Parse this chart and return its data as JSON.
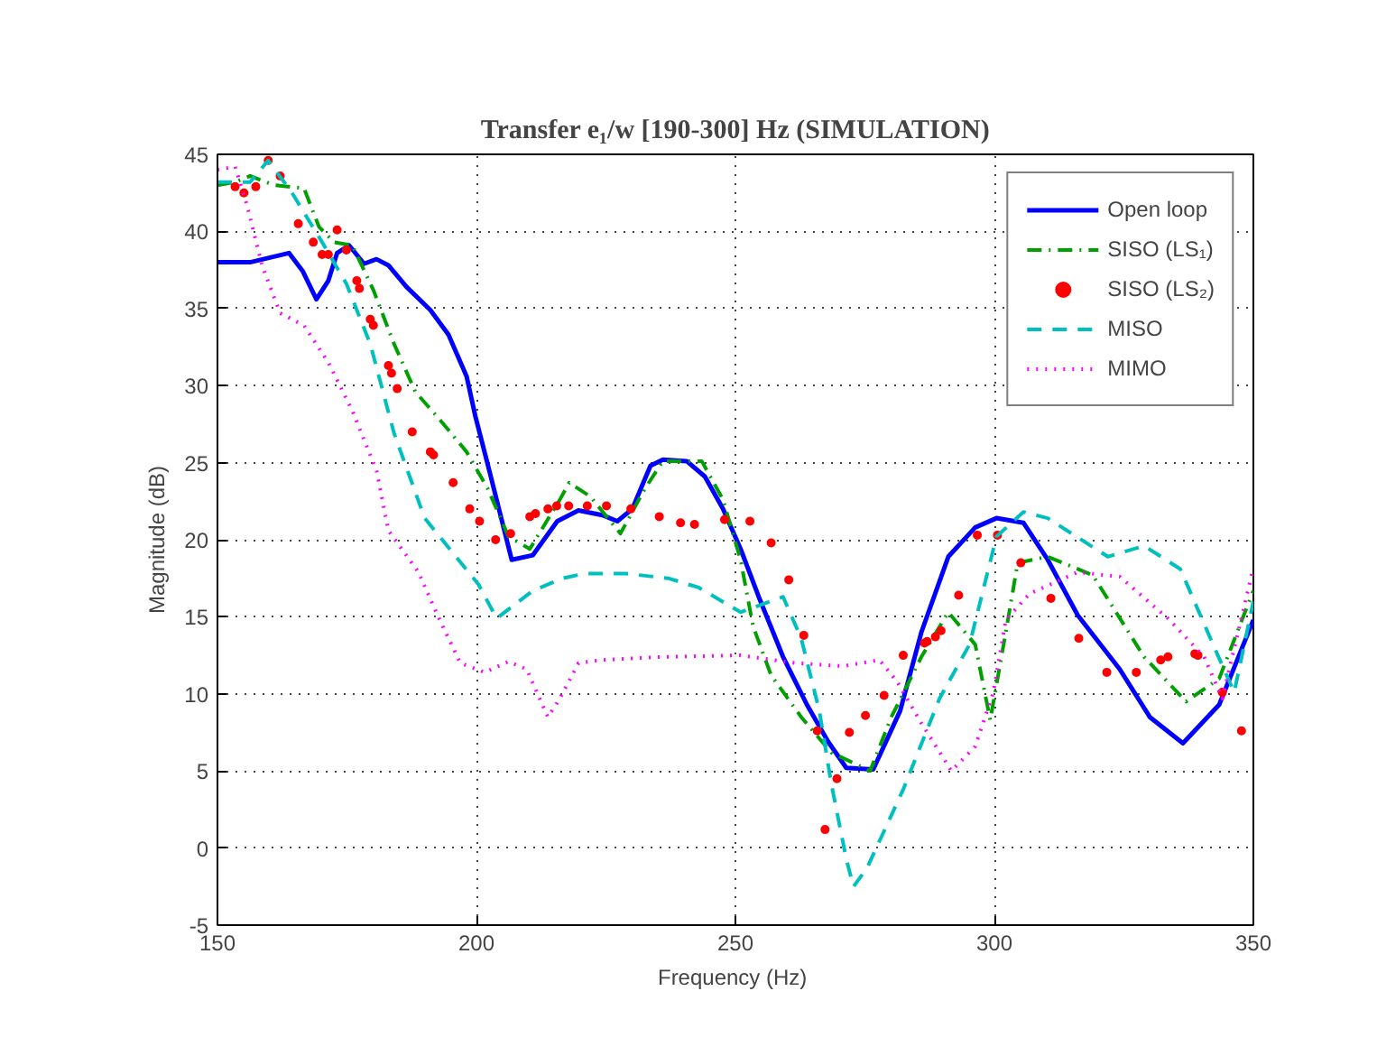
{
  "chart_data": {
    "type": "line",
    "title": "Transfer e₁/w [190-300] Hz (SIMULATION)",
    "xlabel": "Frequency  (Hz)",
    "ylabel": "Magnitude (dB)",
    "xlim": [
      150,
      350
    ],
    "xticks": [
      150,
      200,
      250,
      300,
      350
    ],
    "ylim": [
      -5,
      45
    ],
    "yticks": [
      -5,
      0,
      5,
      10,
      15,
      20,
      25,
      30,
      35,
      40,
      45
    ],
    "grid": true,
    "legend": "top right",
    "series": [
      {
        "name": "Open loop",
        "color": "#0000ff",
        "line_style": "solid",
        "x": [
          150,
          156.3,
          163.8,
          166.5,
          169.1,
          171.4,
          173.1,
          175.4,
          178.3,
          180.7,
          183.0,
          186.5,
          191.1,
          194.6,
          198.1,
          199.8,
          202.7,
          206.8,
          210.9,
          215.6,
          219.7,
          224.3,
          227.2,
          230.1,
          233.6,
          236.0,
          240.6,
          244.1,
          247.6,
          251.0,
          254.5,
          259.2,
          263.8,
          267.9,
          271.4,
          276.6,
          281.8,
          285.9,
          291.1,
          296.3,
          300.4,
          305.6,
          310.3,
          316.1,
          324.2,
          330.0,
          336.4,
          343.4,
          350
        ],
        "values": [
          38.0,
          38.0,
          38.6,
          37.4,
          35.6,
          36.8,
          38.6,
          39.1,
          37.9,
          38.2,
          37.8,
          36.4,
          34.9,
          33.3,
          30.6,
          28.0,
          24.2,
          18.7,
          19.0,
          21.2,
          21.9,
          21.6,
          21.2,
          22.0,
          24.8,
          25.2,
          25.1,
          24.1,
          22.0,
          19.4,
          16.3,
          12.4,
          9.3,
          6.9,
          5.2,
          5.1,
          8.9,
          14.0,
          18.9,
          20.8,
          21.4,
          21.1,
          18.7,
          15.1,
          11.6,
          8.5,
          6.8,
          9.3,
          14.8
        ]
      },
      {
        "name": "SISO (LS₁)",
        "color": "#00a000",
        "line_style": "dashdot",
        "x": [
          150,
          153.4,
          156.3,
          160.9,
          166.7,
          169.6,
          172.5,
          176.0,
          180.1,
          184.1,
          188.2,
          193.4,
          198.1,
          202.2,
          206.2,
          210.3,
          216.1,
          217.9,
          222.0,
          227.8,
          232.5,
          236.0,
          243.5,
          247.6,
          251.0,
          253.4,
          256.9,
          262.7,
          268.5,
          276.0,
          280.1,
          285.9,
          291.1,
          296.3,
          299.2,
          302.2,
          304.5,
          310.3,
          319.0,
          328.9,
          337.0,
          343.4,
          350
        ],
        "values": [
          43.0,
          43.2,
          43.6,
          43.0,
          42.8,
          40.3,
          39.3,
          39.1,
          36.2,
          32.7,
          29.6,
          27.6,
          25.7,
          23.3,
          20.2,
          19.4,
          22.6,
          23.7,
          22.8,
          20.4,
          23.3,
          25.1,
          25.1,
          22.6,
          18.7,
          14.4,
          11.2,
          8.5,
          6.2,
          5.0,
          8.5,
          12.4,
          15.3,
          13.2,
          8.3,
          14.0,
          18.5,
          18.9,
          17.7,
          12.4,
          9.5,
          11.0,
          16.7
        ]
      },
      {
        "name": "SISO (LS₂)",
        "color": "#ff0000",
        "type": "scatter",
        "marker": "circle",
        "x": [
          153.4,
          155.1,
          157.4,
          159.8,
          162.1,
          165.6,
          168.5,
          170.2,
          171.4,
          173.1,
          174.9,
          176.9,
          177.4,
          179.5,
          180.1,
          183.0,
          183.6,
          184.7,
          187.6,
          191.1,
          191.7,
          195.5,
          198.7,
          200.6,
          203.7,
          206.6,
          210.3,
          211.4,
          213.8,
          215.5,
          217.8,
          221.4,
          225.1,
          229.8,
          235.3,
          239.4,
          242.1,
          247.9,
          252.8,
          256.9,
          260.3,
          263.2,
          265.8,
          267.3,
          269.6,
          272.0,
          275.1,
          278.7,
          282.4,
          286.5,
          287.0,
          288.6,
          289.7,
          293.1,
          296.7,
          300.6,
          305.1,
          310.9,
          316.3,
          321.7,
          327.4,
          332.1,
          333.5,
          338.7,
          339.3,
          344.0,
          347.7
        ],
        "values": [
          42.9,
          42.5,
          42.9,
          44.6,
          43.6,
          40.5,
          39.3,
          38.5,
          38.5,
          40.1,
          38.8,
          36.8,
          36.3,
          34.3,
          33.9,
          31.3,
          30.8,
          29.8,
          27.0,
          25.7,
          25.5,
          23.7,
          22.0,
          21.2,
          20.0,
          20.4,
          21.5,
          21.7,
          22.0,
          22.2,
          22.2,
          22.2,
          22.2,
          22.0,
          21.5,
          21.1,
          21.0,
          21.3,
          21.2,
          19.8,
          17.4,
          13.8,
          7.6,
          1.2,
          4.5,
          7.5,
          8.6,
          9.9,
          12.5,
          13.3,
          13.4,
          13.7,
          14.1,
          16.4,
          20.3,
          20.3,
          18.5,
          16.2,
          13.6,
          11.4,
          11.4,
          12.2,
          12.4,
          12.6,
          12.5,
          10.1,
          7.6
        ]
      },
      {
        "name": "MISO",
        "color": "#00bfbf",
        "line_style": "dashed",
        "x": [
          150,
          156.3,
          159.8,
          164.4,
          170.2,
          174.9,
          179.5,
          184.1,
          190.0,
          195.8,
          200.4,
          203.9,
          210.9,
          216.7,
          220.8,
          228.9,
          237.0,
          242.9,
          251.0,
          259.2,
          262.7,
          266.2,
          268.5,
          271.4,
          272.8,
          275.4,
          282.4,
          289.4,
          295.2,
          300.4,
          305.6,
          310.3,
          321.9,
          328.9,
          335.9,
          341.7,
          346.3,
          350
        ],
        "values": [
          43.2,
          43.2,
          44.6,
          42.5,
          39.3,
          36.6,
          32.7,
          26.9,
          21.4,
          19.0,
          17.1,
          14.9,
          16.7,
          17.5,
          17.8,
          17.8,
          17.5,
          16.9,
          15.3,
          16.3,
          13.6,
          8.9,
          4.2,
          -0.7,
          -2.5,
          -1.3,
          3.8,
          9.7,
          13.2,
          20.2,
          21.8,
          21.4,
          18.9,
          19.6,
          18.1,
          13.6,
          10.1,
          16.0
        ]
      },
      {
        "name": "MIMO",
        "color": "#ff00ff",
        "line_style": "dotted",
        "x": [
          150,
          153.4,
          155.7,
          158.6,
          162.1,
          166.7,
          171.4,
          176.0,
          180.7,
          183.0,
          188.8,
          192.9,
          196.9,
          201.6,
          206.2,
          209.7,
          213.8,
          216.1,
          219.7,
          224.3,
          236.0,
          251.0,
          261.5,
          270.8,
          277.8,
          281.2,
          285.9,
          291.7,
          296.3,
          299.8,
          302.2,
          306.8,
          316.1,
          324.2,
          333.5,
          340.5,
          344.0,
          349.8
        ],
        "values": [
          44.0,
          44.2,
          41.7,
          37.8,
          34.7,
          33.9,
          31.5,
          28.4,
          24.5,
          20.6,
          17.9,
          14.8,
          12.0,
          11.4,
          12.1,
          11.6,
          8.5,
          9.7,
          12.0,
          12.2,
          12.4,
          12.5,
          12.0,
          11.8,
          12.2,
          10.8,
          8.1,
          5.0,
          6.6,
          10.1,
          14.8,
          16.5,
          17.9,
          17.6,
          14.9,
          12.4,
          9.7,
          17.9
        ]
      }
    ]
  }
}
